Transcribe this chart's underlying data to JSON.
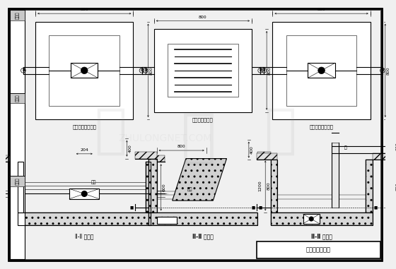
{
  "title": "喷泉实例节点图",
  "sidebar_labels": [
    "设计人",
    "校工人",
    "审核人"
  ],
  "top_row_labels": [
    "给水阀门井平面图",
    "连线泵井平面图",
    "控空阀门井平面图"
  ],
  "bottom_row_labels_left": "Ⅱ-Ⅱ 剖面图",
  "bottom_row_labels_mid": "Ⅱ-Ⅱ 剖面图",
  "bottom_row_labels_right": "Ⅱ-Ⅱ 剖面图",
  "bg_color": "#f5f5f5",
  "line_color": "#000000",
  "label_fontsize": 5.0,
  "title_fontsize": 6.0
}
